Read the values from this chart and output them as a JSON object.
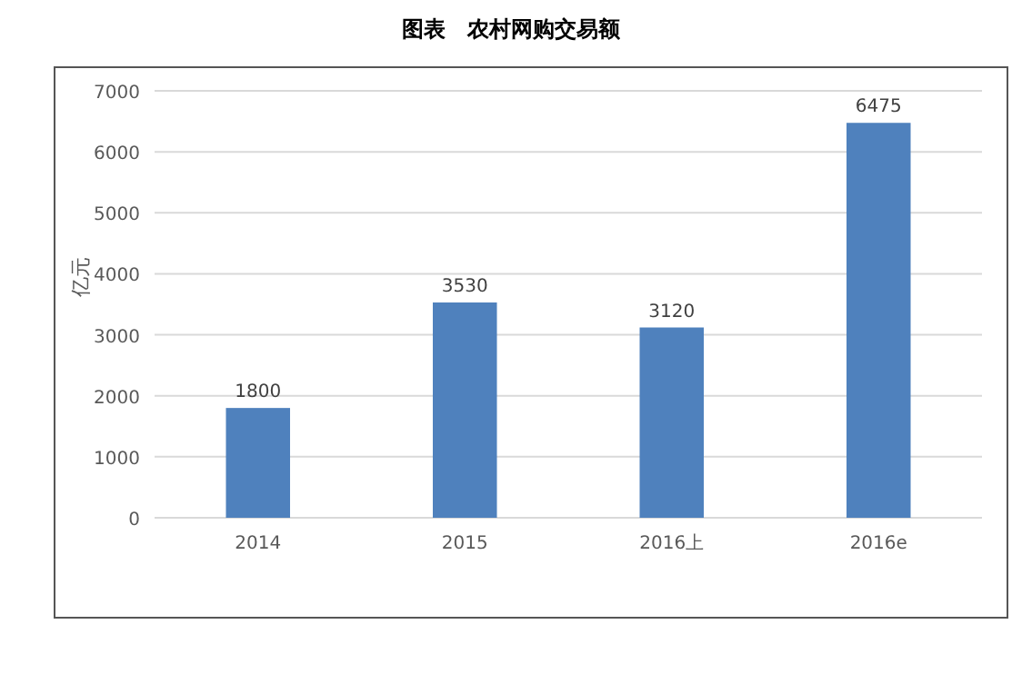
{
  "chart_data": {
    "type": "bar",
    "title": "图表　农村网购交易额",
    "ylabel": "亿元",
    "categories": [
      "2014",
      "2015",
      "2016上",
      "2016e"
    ],
    "values": [
      1800,
      3530,
      3120,
      6475
    ],
    "color": "#4f81bd",
    "ylim": [
      0,
      7000
    ],
    "yticks": [
      0,
      1000,
      2000,
      3000,
      4000,
      5000,
      6000,
      7000
    ],
    "grid": "y",
    "data_labels": true
  }
}
